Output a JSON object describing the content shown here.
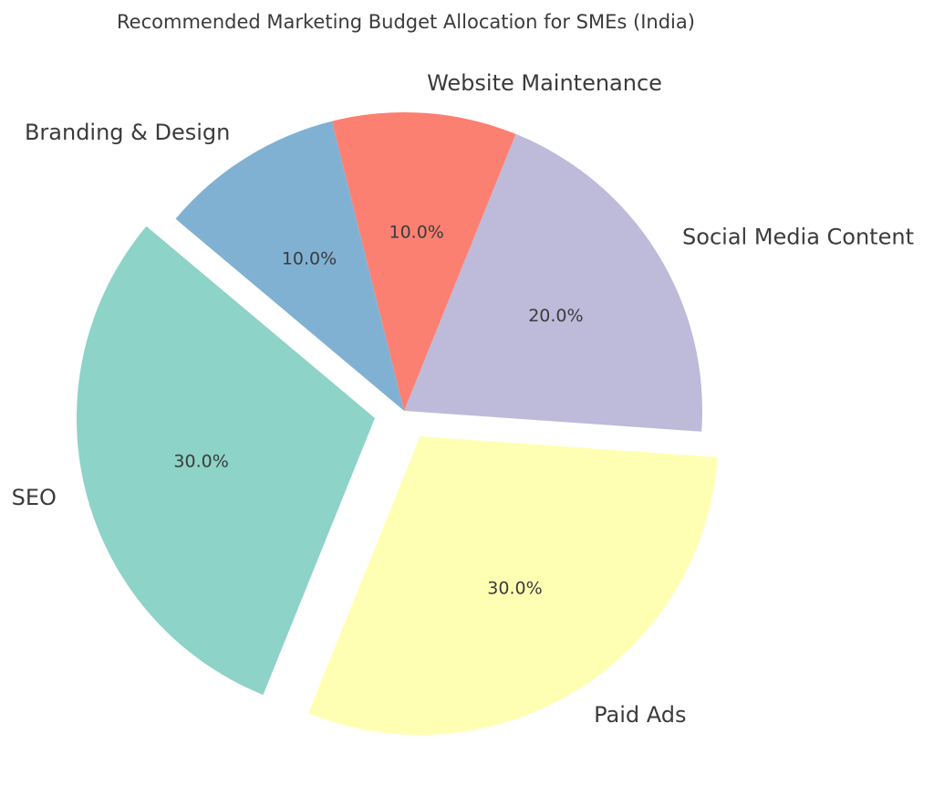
{
  "chart_data": {
    "type": "pie",
    "title": "Recommended Marketing Budget Allocation for SMEs (India)",
    "categories": [
      "SEO",
      "Paid Ads",
      "Social Media Content",
      "Website Maintenance",
      "Branding & Design"
    ],
    "values": [
      30,
      30,
      20,
      10,
      10
    ],
    "percent_labels": [
      "30.0%",
      "30.0%",
      "20.0%",
      "10.0%",
      "10.0%"
    ],
    "colors": [
      "#8dd3c7",
      "#ffffb3",
      "#bebada",
      "#fb8072",
      "#80b1d3"
    ],
    "exploded": [
      "SEO",
      "Paid Ads"
    ],
    "start_angle_deg": 140,
    "direction": "counterclockwise",
    "legend": "none"
  }
}
